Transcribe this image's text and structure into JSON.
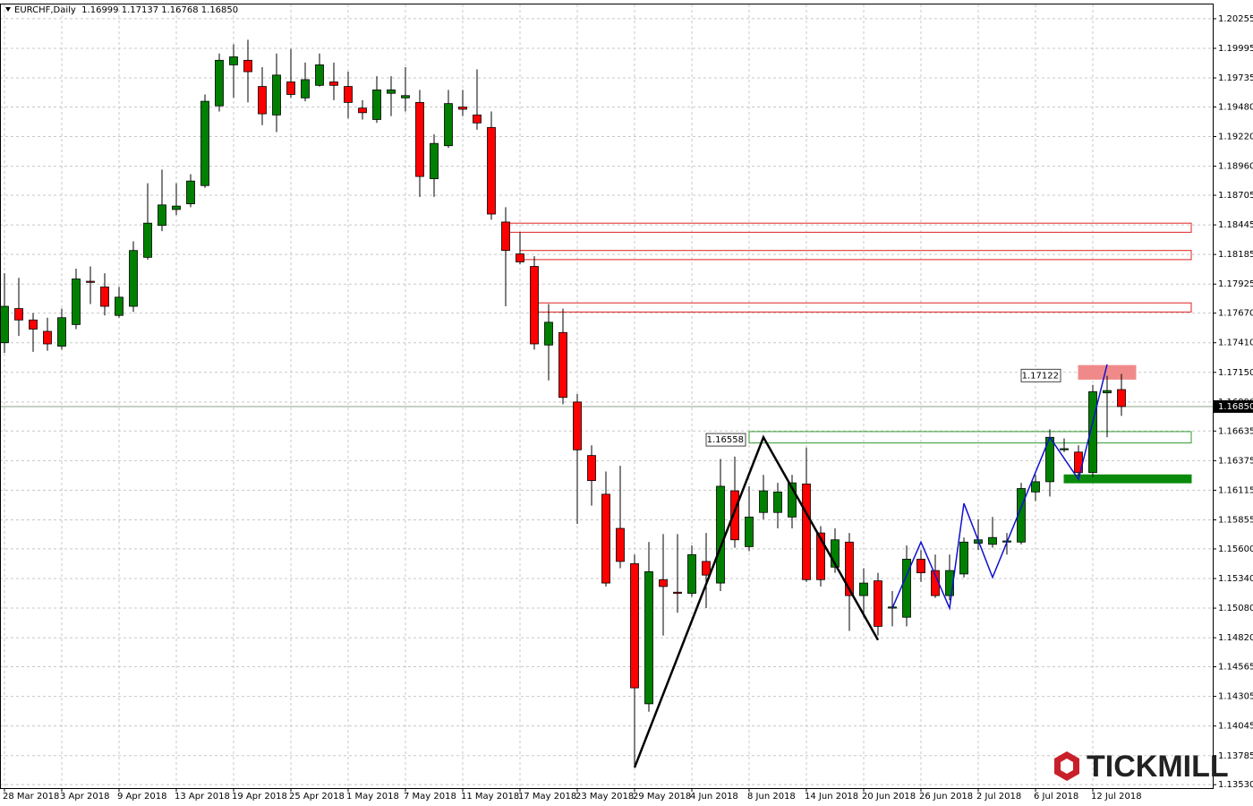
{
  "chart_data": {
    "type": "candlestick",
    "header": "EURCHF,Daily  1.16999 1.17137 1.16768 1.16850",
    "logo": "TICKMILL",
    "categories": [
      "28 Mar 2018",
      null,
      null,
      null,
      "3 Apr 2018",
      null,
      null,
      null,
      "9 Apr 2018",
      null,
      null,
      null,
      "13 Apr 2018",
      null,
      null,
      null,
      "19 Apr 2018",
      null,
      null,
      null,
      "25 Apr 2018",
      null,
      null,
      null,
      "1 May 2018",
      null,
      null,
      null,
      "7 May 2018",
      null,
      null,
      null,
      "11 May 2018",
      null,
      null,
      null,
      "17 May 2018",
      null,
      null,
      null,
      "23 May 2018",
      null,
      null,
      null,
      "29 May 2018",
      null,
      null,
      null,
      "4 Jun 2018",
      null,
      null,
      null,
      "8 Jun 2018",
      null,
      null,
      null,
      "14 Jun 2018",
      null,
      null,
      null,
      "20 Jun 2018",
      null,
      null,
      null,
      "26 Jun 2018",
      null,
      null,
      null,
      "2 Jul 2018",
      null,
      null,
      null,
      "6 Jul 2018",
      null,
      null,
      null,
      "12 Jul 2018",
      null,
      null
    ],
    "open": [
      1.1741,
      1.1771,
      1.1761,
      1.1751,
      1.1738,
      1.1757,
      1.1795,
      1.179,
      1.1765,
      1.1773,
      1.1816,
      1.1844,
      1.1858,
      1.1863,
      1.1879,
      1.1949,
      1.1985,
      1.1989,
      1.1966,
      1.1941,
      1.197,
      1.1956,
      1.1967,
      1.197,
      1.1966,
      1.1947,
      1.1937,
      1.196,
      1.1956,
      1.1952,
      1.1885,
      1.1914,
      1.1948,
      1.1941,
      1.193,
      1.1847,
      1.1819,
      1.1808,
      1.1739,
      1.175,
      1.1689,
      1.1642,
      1.1608,
      1.1578,
      1.1547,
      1.1424,
      1.1533,
      1.1522,
      1.1521,
      1.1549,
      1.153,
      1.1611,
      1.1562,
      1.1592,
      1.1592,
      1.1588,
      1.1617,
      1.1574,
      1.1544,
      1.1566,
      1.1519,
      1.1532,
      1.1508,
      1.15,
      1.1551,
      1.1541,
      1.1519,
      1.1538,
      1.1565,
      1.1564,
      1.1566,
      1.1566,
      1.161,
      1.1619,
      1.1647,
      1.1645,
      1.1627,
      1.1697,
      1.16999
    ],
    "high": [
      1.1802,
      1.1798,
      1.1767,
      1.1763,
      1.1771,
      1.1806,
      1.1808,
      1.1802,
      1.179,
      1.183,
      1.1881,
      1.1893,
      1.1881,
      1.1889,
      1.1959,
      1.1995,
      1.2003,
      1.2007,
      1.1983,
      1.1995,
      1.1999,
      1.1987,
      1.1995,
      1.1987,
      1.1979,
      1.1954,
      1.1975,
      1.1975,
      1.1983,
      1.1963,
      1.1924,
      1.1963,
      1.1963,
      1.1981,
      1.1944,
      1.186,
      1.1838,
      1.1817,
      1.1775,
      1.1771,
      1.1696,
      1.1651,
      1.1628,
      1.1633,
      1.1555,
      1.1566,
      1.1573,
      1.1573,
      1.1563,
      1.1574,
      1.1639,
      1.1641,
      1.1615,
      1.1625,
      1.1618,
      1.1625,
      1.1649,
      1.158,
      1.1578,
      1.1574,
      1.1543,
      1.1539,
      1.1523,
      1.1563,
      1.1559,
      1.1555,
      1.1555,
      1.157,
      1.1586,
      1.1588,
      1.1574,
      1.1618,
      1.1625,
      1.1665,
      1.1657,
      1.1651,
      1.1704,
      1.1712,
      1.17137
    ],
    "low": [
      1.1732,
      1.1747,
      1.1733,
      1.1734,
      1.1735,
      1.1753,
      1.1775,
      1.1765,
      1.1763,
      1.1768,
      1.1814,
      1.1839,
      1.1853,
      1.186,
      1.1877,
      1.1944,
      1.1956,
      1.1952,
      1.1932,
      1.1926,
      1.1956,
      1.1953,
      1.1966,
      1.1954,
      1.1938,
      1.1937,
      1.1934,
      1.194,
      1.1944,
      1.1869,
      1.1869,
      1.1912,
      1.194,
      1.1928,
      1.1849,
      1.1773,
      1.181,
      1.1735,
      1.1708,
      1.1687,
      1.1582,
      1.1598,
      1.1527,
      1.1543,
      1.137,
      1.1417,
      1.1484,
      1.1504,
      1.1518,
      1.1508,
      1.1523,
      1.1561,
      1.1558,
      1.1586,
      1.1578,
      1.1578,
      1.1531,
      1.1527,
      1.1539,
      1.1488,
      1.15,
      1.1484,
      1.1492,
      1.1492,
      1.1531,
      1.1517,
      1.1515,
      1.1535,
      1.1559,
      1.1561,
      1.1555,
      1.1564,
      1.1602,
      1.1606,
      1.1645,
      1.1624,
      1.1623,
      1.1658,
      1.16768
    ],
    "close": [
      1.1773,
      1.1761,
      1.1753,
      1.174,
      1.1763,
      1.1797,
      1.1794,
      1.1773,
      1.1781,
      1.1822,
      1.1846,
      1.1862,
      1.1861,
      1.1883,
      1.1953,
      1.1989,
      1.1992,
      1.1979,
      1.1942,
      1.1976,
      1.1959,
      1.1972,
      1.1985,
      1.1967,
      1.1952,
      1.1943,
      1.1963,
      1.1963,
      1.1958,
      1.1887,
      1.1916,
      1.1951,
      1.1946,
      1.1934,
      1.1854,
      1.1822,
      1.1812,
      1.174,
      1.1759,
      1.1693,
      1.1647,
      1.162,
      1.153,
      1.1549,
      1.1438,
      1.154,
      1.1527,
      1.1521,
      1.1555,
      1.1537,
      1.1615,
      1.1568,
      1.1588,
      1.1611,
      1.161,
      1.1618,
      1.1533,
      1.1533,
      1.1568,
      1.1519,
      1.153,
      1.1492,
      1.1509,
      1.1551,
      1.1539,
      1.1519,
      1.1541,
      1.1566,
      1.1568,
      1.157,
      1.1567,
      1.1613,
      1.1619,
      1.1658,
      1.1648,
      1.1627,
      1.1698,
      1.1699,
      1.1685
    ],
    "up_color": "#008000",
    "down_color": "#ff0000",
    "ylim": [
      1.135,
      1.2038
    ],
    "yticks": [
      1.20255,
      1.19995,
      1.19735,
      {
        "value": 1.1948,
        "label": "1.19480"
      },
      {
        "value": 1.1922,
        "label": "1.19220"
      },
      {
        "value": 1.1896,
        "label": "1.18960"
      },
      1.18705,
      1.18445,
      1.18185,
      1.17925,
      {
        "value": 1.1767,
        "label": "1.17670"
      },
      {
        "value": 1.1741,
        "label": "1.17410"
      },
      {
        "value": 1.1715,
        "label": "1.17150"
      },
      {
        "value": 1.1689,
        "label": "1.16890"
      },
      1.16635,
      1.16375,
      1.16115,
      1.15855,
      {
        "value": 1.156,
        "label": "1.15600"
      },
      {
        "value": 1.1534,
        "label": "1.15340"
      },
      {
        "value": 1.1508,
        "label": "1.15080"
      },
      {
        "value": 1.1482,
        "label": "1.14820"
      },
      1.14565,
      1.14305,
      1.14045,
      1.13785,
      {
        "value": 1.1353,
        "label": "1.13530"
      }
    ],
    "grid": true,
    "last_price": {
      "value": 1.1685,
      "label": "1.16850"
    },
    "zones": [
      {
        "from": 35,
        "top": 1.1846,
        "bottom": 1.1838,
        "color": "#e02020",
        "filled": false
      },
      {
        "from": 36,
        "top": 1.1822,
        "bottom": 1.1814,
        "color": "#e02020",
        "filled": false
      },
      {
        "from": 37,
        "top": 1.1776,
        "bottom": 1.1768,
        "color": "#e02020",
        "filled": false
      },
      {
        "from": 52,
        "top": 1.1663,
        "bottom": 1.1653,
        "color": "#2e9a2e",
        "filled": false
      },
      {
        "from": 74,
        "top": 1.1625,
        "bottom": 1.1618,
        "color": "#0a8a0a",
        "filled": true
      },
      {
        "from": 75,
        "to": 79,
        "top": 1.1721,
        "bottom": 1.1709,
        "color": "#f08a8a",
        "filled": true
      }
    ],
    "price_labels": [
      {
        "value": 1.17122,
        "index": 74
      },
      {
        "value": 1.16558,
        "index": 52
      }
    ],
    "lines": [
      {
        "color": "#000000",
        "x": [
          44,
          53,
          61
        ],
        "y": [
          1.1368,
          1.1658,
          1.148
        ]
      },
      {
        "color": "#1010d0",
        "x": [
          62,
          64,
          66,
          67,
          69,
          73,
          75,
          77
        ],
        "y": [
          1.1508,
          1.1566,
          1.1508,
          1.16,
          1.1535,
          1.1658,
          1.1621,
          1.1722
        ]
      }
    ]
  }
}
